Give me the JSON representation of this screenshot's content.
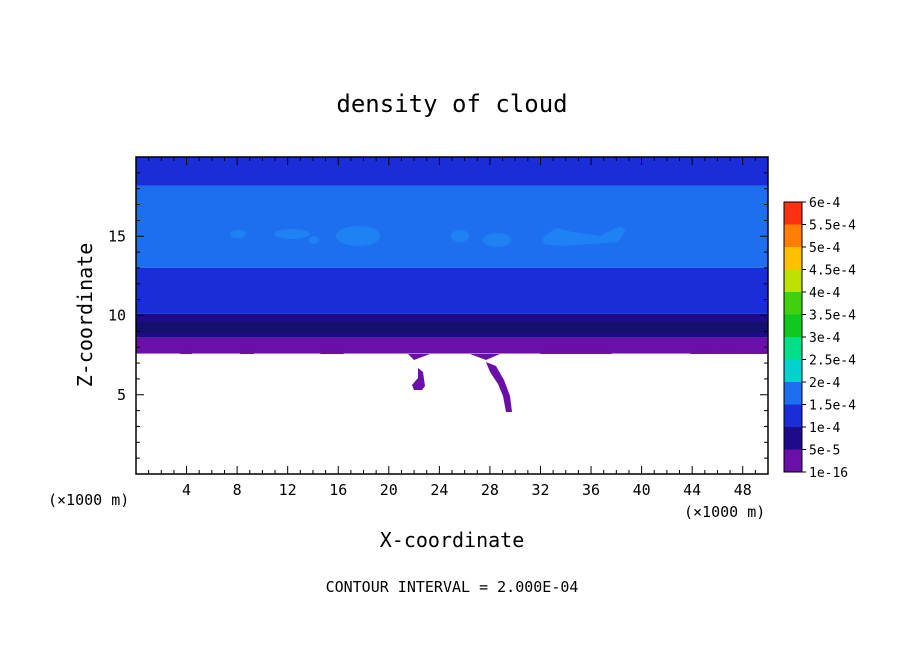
{
  "chart_data": {
    "type": "heatmap",
    "title": "density of cloud",
    "xlabel": "X-coordinate",
    "ylabel": "Z-coordinate",
    "x_unit_left": "(×1000 m)",
    "x_unit_right": "(×1000 m)",
    "xlim": [
      0,
      50
    ],
    "ylim": [
      0,
      20
    ],
    "x_ticks": [
      4,
      8,
      12,
      16,
      20,
      24,
      28,
      32,
      36,
      40,
      44,
      48
    ],
    "x_tick_labels": [
      "4",
      "8",
      "12",
      "16",
      "20",
      "24",
      "28",
      "32",
      "36",
      "40",
      "44",
      "48"
    ],
    "y_ticks": [
      5,
      10,
      15
    ],
    "y_tick_labels": [
      "5",
      "10",
      "15"
    ],
    "grid": false,
    "colorbar": {
      "labels": [
        "1e-16",
        "5e-5",
        "1e-4",
        "1.5e-4",
        "2e-4",
        "2.5e-4",
        "3e-4",
        "3.5e-4",
        "4e-4",
        "4.5e-4",
        "5e-4",
        "5.5e-4",
        "6e-4"
      ],
      "colors": [
        "#6a0fa8",
        "#1f0b8a",
        "#1a2ed8",
        "#1e6ff0",
        "#00d2d2",
        "#00e08a",
        "#10c820",
        "#40d010",
        "#c0e000",
        "#ffc000",
        "#ff8000",
        "#ff3010",
        "#ff9090"
      ]
    },
    "field_layers": [
      {
        "name": "layer-1e-16",
        "z_range": [
          7.6,
          8.6
        ],
        "level": "1e-16"
      },
      {
        "name": "layer-5e-5",
        "z_range": [
          8.6,
          10.1
        ],
        "level": "5e-5"
      },
      {
        "name": "layer-1e-4",
        "z_range": [
          10.1,
          13.0
        ],
        "level": "1e-4"
      },
      {
        "name": "layer-1.5e-4",
        "z_range": [
          13.0,
          18.2
        ],
        "level": "1.5e-4"
      },
      {
        "name": "layer-top-1e-4",
        "z_range": [
          18.2,
          20
        ],
        "level": "1e-4"
      }
    ],
    "annotation": "CONTOUR INTERVAL = 2.000E-04"
  }
}
